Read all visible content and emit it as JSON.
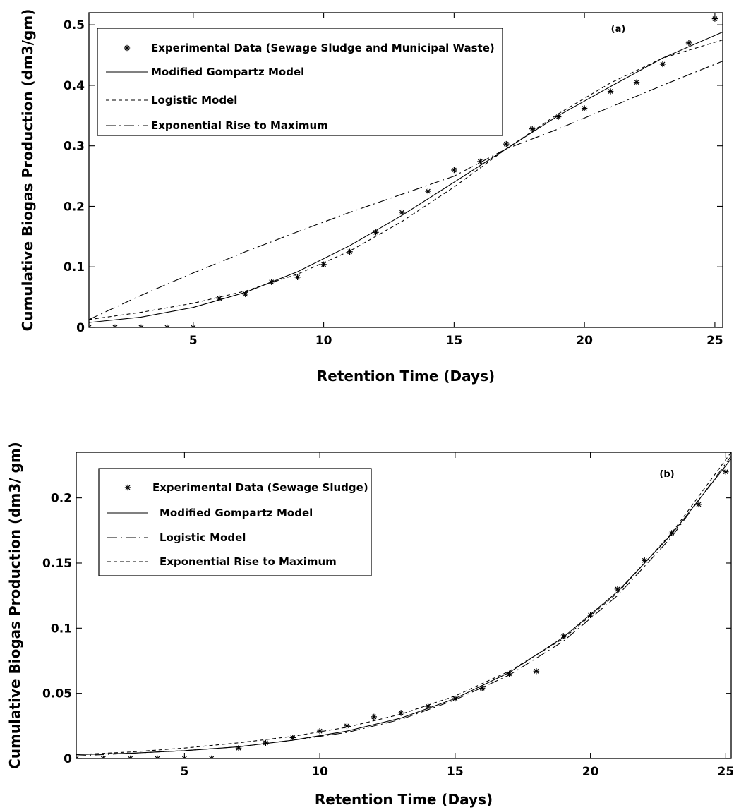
{
  "chart_data": [
    {
      "type": "line",
      "panel_label": "(a)",
      "xlabel": "Retention Time (Days)",
      "ylabel": "Cumulative Biogas Production (dm3/gm)",
      "xlim": [
        1,
        25.3
      ],
      "ylim": [
        0,
        0.52
      ],
      "xticks": [
        5,
        10,
        15,
        20,
        25
      ],
      "yticks": [
        0,
        0.1,
        0.2,
        0.3,
        0.4,
        0.5
      ],
      "ytick_labels": [
        "0",
        "0.1",
        "0.2",
        "0.3",
        "0.4",
        "0.5"
      ],
      "grid": false,
      "legend_position": "top-left",
      "series": [
        {
          "name": "Experimental Data (Sewage Sludge and Municipal Waste)",
          "style": "markers-star",
          "x": [
            1,
            2,
            3,
            4,
            5,
            6,
            7,
            8,
            9,
            10,
            11,
            12,
            13,
            14,
            15,
            16,
            17,
            18,
            19,
            20,
            21,
            22,
            23,
            24,
            25
          ],
          "y": [
            0,
            0,
            0,
            0,
            0,
            0.048,
            0.055,
            0.075,
            0.083,
            0.104,
            0.125,
            0.157,
            0.19,
            0.225,
            0.26,
            0.274,
            0.303,
            0.328,
            0.348,
            0.362,
            0.39,
            0.405,
            0.435,
            0.47,
            0.51
          ]
        },
        {
          "name": "Modified Gompartz Model",
          "style": "solid",
          "x": [
            1,
            3,
            5,
            7,
            9,
            11,
            13,
            15,
            17,
            19,
            21,
            23,
            25.3
          ],
          "y": [
            0.008,
            0.017,
            0.033,
            0.058,
            0.092,
            0.135,
            0.185,
            0.24,
            0.295,
            0.35,
            0.398,
            0.445,
            0.488
          ]
        },
        {
          "name": "Logistic Model",
          "style": "dotted",
          "x": [
            1,
            3,
            5,
            7,
            9,
            11,
            13,
            15,
            17,
            19,
            21,
            23,
            25.3
          ],
          "y": [
            0.013,
            0.025,
            0.04,
            0.06,
            0.088,
            0.126,
            0.175,
            0.232,
            0.295,
            0.353,
            0.404,
            0.445,
            0.475
          ]
        },
        {
          "name": "Exponential Rise to Maximum",
          "style": "dashdot",
          "x": [
            1,
            3,
            5,
            7,
            9,
            11,
            13,
            15,
            17,
            19,
            21,
            23,
            25.3
          ],
          "y": [
            0.013,
            0.053,
            0.09,
            0.125,
            0.158,
            0.19,
            0.22,
            0.25,
            0.295,
            0.328,
            0.364,
            0.4,
            0.44
          ]
        }
      ]
    },
    {
      "type": "line",
      "panel_label": "(b)",
      "xlabel": "Retention Time (Days)",
      "ylabel": "Cumulative Biogas Production (dm3/ gm)",
      "xlim": [
        1,
        25.2
      ],
      "ylim": [
        0,
        0.235
      ],
      "xticks": [
        5,
        10,
        15,
        20,
        25
      ],
      "yticks": [
        0,
        0.05,
        0.1,
        0.15,
        0.2
      ],
      "ytick_labels": [
        "0",
        "0.05",
        "0.1",
        "0.15",
        "0.2"
      ],
      "grid": false,
      "legend_position": "top-left",
      "series": [
        {
          "name": "Experimental Data (Sewage Sludge)",
          "style": "markers-star",
          "x": [
            1,
            2,
            3,
            4,
            5,
            6,
            7,
            8,
            9,
            10,
            11,
            12,
            13,
            14,
            15,
            16,
            17,
            18,
            19,
            20,
            21,
            22,
            23,
            24,
            25
          ],
          "y": [
            0,
            0,
            0,
            0,
            0,
            0,
            0.008,
            0.012,
            0.016,
            0.021,
            0.025,
            0.032,
            0.035,
            0.04,
            0.046,
            0.054,
            0.065,
            0.067,
            0.094,
            0.11,
            0.13,
            0.152,
            0.173,
            0.195,
            0.22
          ]
        },
        {
          "name": "Modified Gompartz Model",
          "style": "solid",
          "x": [
            1,
            3,
            5,
            7,
            9,
            11,
            13,
            15,
            17,
            19,
            21,
            23,
            25.2
          ],
          "y": [
            0.003,
            0.004,
            0.006,
            0.009,
            0.014,
            0.021,
            0.031,
            0.046,
            0.066,
            0.093,
            0.128,
            0.172,
            0.23
          ]
        },
        {
          "name": "Logistic Model",
          "style": "dashdot",
          "x": [
            1,
            3,
            5,
            7,
            9,
            11,
            13,
            15,
            17,
            19,
            21,
            23,
            25.2
          ],
          "y": [
            0.002,
            0.004,
            0.006,
            0.009,
            0.014,
            0.02,
            0.03,
            0.045,
            0.064,
            0.09,
            0.125,
            0.17,
            0.232
          ]
        },
        {
          "name": "Exponential Rise to Maximum",
          "style": "dotted",
          "x": [
            1,
            3,
            5,
            7,
            9,
            11,
            13,
            15,
            17,
            19,
            21,
            23,
            25.2
          ],
          "y": [
            0.003,
            0.005,
            0.008,
            0.012,
            0.017,
            0.024,
            0.034,
            0.048,
            0.067,
            0.092,
            0.127,
            0.173,
            0.235
          ]
        }
      ]
    }
  ]
}
